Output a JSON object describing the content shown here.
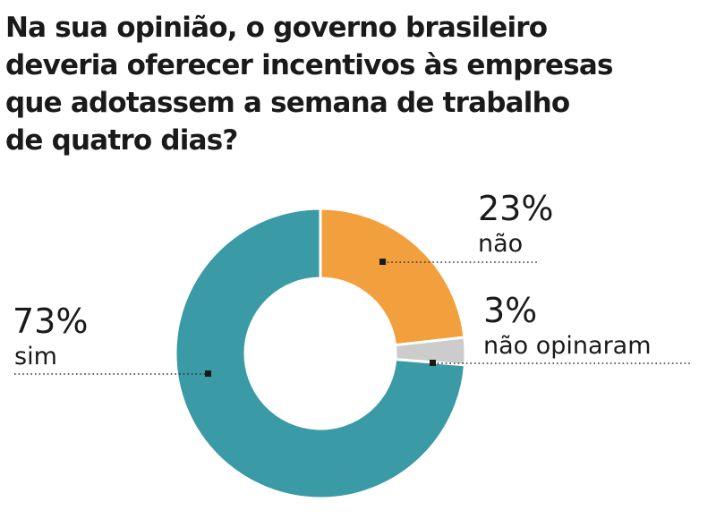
{
  "title": "Na sua opinião, o governo brasileiro deveria oferecer  incentivos às empresas que adotassem a semana de trabalho de quatro dias?",
  "chart_data": {
    "type": "pie",
    "donut": true,
    "title": "Na sua opinião, o governo brasileiro deveria oferecer  incentivos às empresas que adotassem a semana de trabalho de quatro dias?",
    "slices": [
      {
        "label": "não",
        "value": 23,
        "value_label": "23%",
        "color": "#f2a03d"
      },
      {
        "label": "não opinaram",
        "value": 3,
        "value_label": "3%",
        "color": "#cccccc"
      },
      {
        "label": "sim",
        "value": 73,
        "value_label": "73%",
        "color": "#3a9aa5"
      }
    ],
    "legend": "none"
  }
}
